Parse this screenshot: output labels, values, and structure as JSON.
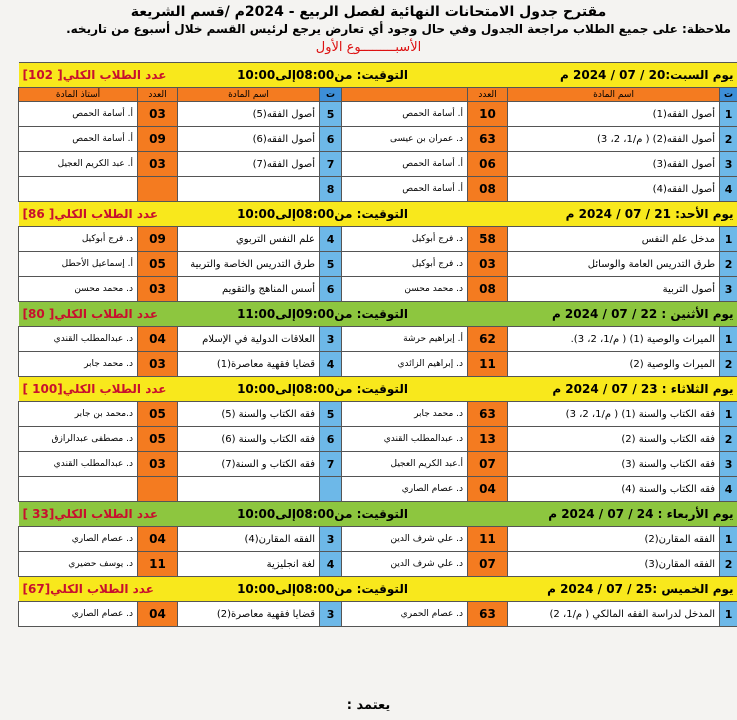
{
  "title": "مقترح جدول الامتحانات النهائية لفصل الربيع - 2024م /قسم الشريعة",
  "note": "ملاحظة: على جميع الطلاب مراجعة الجدول وفي حال وجود أي تعارض يرجع لرئيس القسم خلال أسبوع من تاريخه.",
  "week": "الأسبـــــــــوع الأول",
  "colors": {
    "yellow": "#f8e81c",
    "green": "#8dc63f",
    "orange": "#f47b20",
    "blue": "#6db8e8",
    "red": "#c8102e"
  },
  "headers": {
    "num": "ت",
    "subject": "اسم المادة",
    "count": "العدد",
    "teacher": "أستاذ المادة"
  },
  "days": [
    {
      "label": "يوم السبت:20 / 07 / 2024 م",
      "time": "التوقيت: من08:00إلى10:00",
      "total": "عدد الطلاب الكلي[ 102]",
      "color": "yellow",
      "show_header": true,
      "rows": [
        [
          [
            "1",
            "أصول الفقه(1)",
            "10",
            "أ. أسامة الحمص"
          ],
          [
            "5",
            "أصول الفقه(5)",
            "03",
            "أ. أسامة الحمص"
          ]
        ],
        [
          [
            "2",
            "أصول الفقه(2) ( م/1، 2، 3)",
            "63",
            "د. عمران بن عيسى"
          ],
          [
            "6",
            "أصول الفقه(6)",
            "09",
            "أ. أسامة الحمص"
          ]
        ],
        [
          [
            "3",
            "أصول الفقه(3)",
            "06",
            "أ. أسامة الحمص"
          ],
          [
            "7",
            "أصول الفقه(7)",
            "03",
            "أ. عبد الكريم العجيل"
          ]
        ],
        [
          [
            "4",
            "أصول الفقه(4)",
            "08",
            "أ. أسامة الحمص"
          ],
          [
            "8",
            "",
            "",
            ""
          ]
        ]
      ]
    },
    {
      "label": "يوم الأحد: 21 / 07 / 2024 م",
      "time": "التوقيت: من08:00إلى10:00",
      "total": "عدد الطلاب الكلي[ 86]",
      "color": "yellow",
      "rows": [
        [
          [
            "1",
            "مدخل علم النفس",
            "58",
            "د. فرج أبوكيل"
          ],
          [
            "4",
            "علم النفس التربوي",
            "09",
            "د. فرج أبوكيل"
          ]
        ],
        [
          [
            "2",
            "طرق التدريس العامة والوسائل",
            "03",
            "د. فرج أبوكيل"
          ],
          [
            "5",
            "طرق التدريس الخاصة والتربية",
            "05",
            "أ. إسماعيل الأحطل"
          ]
        ],
        [
          [
            "3",
            "أصول التربية",
            "08",
            "د. محمد محسن"
          ],
          [
            "6",
            "أسس المناهج والتقويم",
            "03",
            "د. محمد محسن"
          ]
        ]
      ]
    },
    {
      "label": "يوم الأثنين : 22 / 07 / 2024 م",
      "time": "التوقيت: من09:00إلى11:00",
      "total": "عدد الطلاب الكلي[ 80]",
      "color": "green",
      "rows": [
        [
          [
            "1",
            "الميراث والوصية (1) ( م/1، 2، 3).",
            "62",
            "أ. إبراهيم حرشة"
          ],
          [
            "3",
            "العلاقات الدولية في الإسلام",
            "04",
            "د. عبدالمطلب القندي"
          ]
        ],
        [
          [
            "2",
            "الميراث والوصية (2)",
            "11",
            "د. إبراهيم الزائدي"
          ],
          [
            "4",
            "قضايا فقهية معاصرة(1)",
            "03",
            "د. محمد جابر"
          ]
        ]
      ]
    },
    {
      "label": "يوم الثلاثاء : 23 / 07 / 2024 م",
      "time": "التوقيت: من08:00إلى10:00",
      "total": "عدد الطلاب الكلي[100 ]",
      "color": "yellow",
      "rows": [
        [
          [
            "1",
            "فقه الكتاب والسنة (1) ( م/1، 2، 3)",
            "63",
            "د. محمد جابر"
          ],
          [
            "5",
            "فقه الكتاب والسنة (5)",
            "05",
            "د.محمد بن جابر"
          ]
        ],
        [
          [
            "2",
            "فقه الكتاب والسنة (2)",
            "13",
            "د. عبدالمطلب القندي"
          ],
          [
            "6",
            "فقه الكتاب والسنة (6)",
            "05",
            "د. مصطفى عبدالرازق"
          ]
        ],
        [
          [
            "3",
            "فقه الكتاب والسنة (3)",
            "07",
            "أ.عبد الكريم العجيل"
          ],
          [
            "7",
            "فقه الكتاب و السنة(7)",
            "03",
            "د. عبدالمطلب القندي"
          ]
        ],
        [
          [
            "4",
            "فقه الكتاب والسنة (4)",
            "04",
            "د. عصام الصاري"
          ],
          [
            "",
            "",
            "",
            ""
          ]
        ]
      ]
    },
    {
      "label": "يوم الأربعاء : 24 / 07 / 2024 م",
      "time": "التوقيت: من08:00إلى10:00",
      "total": "عدد الطلاب الكلي[33 ]",
      "color": "green",
      "rows": [
        [
          [
            "1",
            "الفقه المقارن(2)",
            "11",
            "د. علي شرف الدين"
          ],
          [
            "3",
            "الفقه المقارن(4)",
            "04",
            "د. عصام الصاري"
          ]
        ],
        [
          [
            "2",
            "الفقه المقارن(3)",
            "07",
            "د. علي شرف الدين"
          ],
          [
            "4",
            "لغة انجليزية",
            "11",
            "د. يوسف حضيري"
          ]
        ]
      ]
    },
    {
      "label": "يوم الخميس :25 / 07 / 2024 م",
      "time": "التوقيت: من08:00إلى10:00",
      "total": "عدد الطلاب الكلي[67]",
      "color": "yellow",
      "rows": [
        [
          [
            "1",
            "المدخل لدراسة الفقه المالكي ( م/1، 2)",
            "63",
            "د. عصام الحمري"
          ],
          [
            "3",
            "قضايا فقهية معاصرة(2)",
            "04",
            "د. عصام الصاري"
          ]
        ]
      ]
    }
  ],
  "footer": "يعتمد :"
}
